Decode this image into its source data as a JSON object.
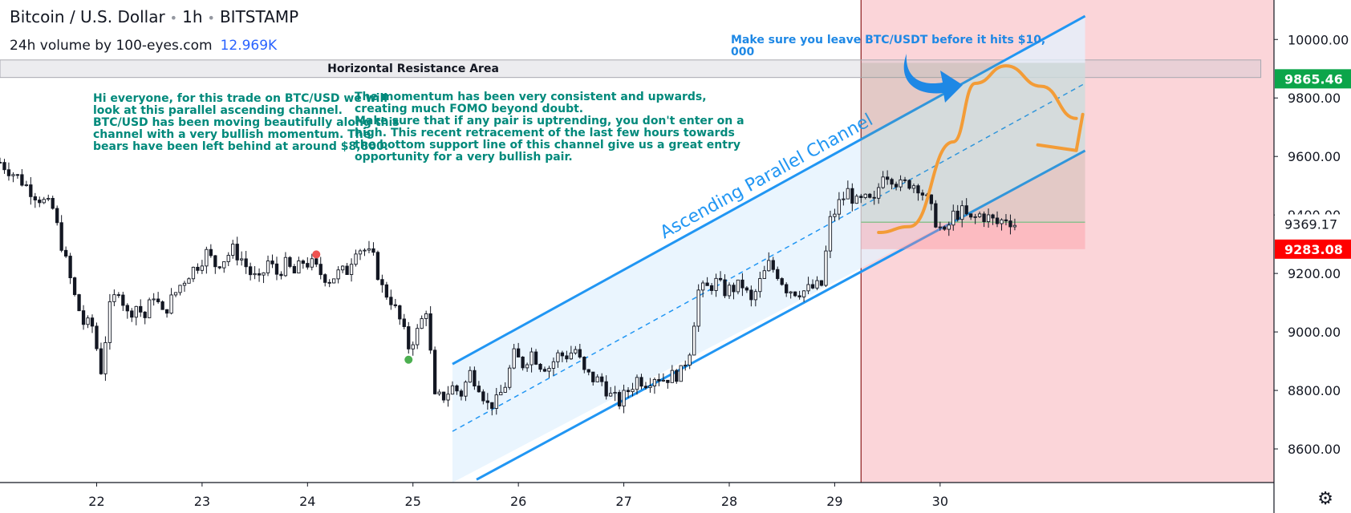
{
  "header": {
    "pair": "Bitcoin / U.S. Dollar",
    "interval": "1h",
    "exchange": "BITSTAMP",
    "volume_label": "24h volume by 100-eyes.com",
    "volume_value": "12.969K"
  },
  "colors": {
    "up_candle": "#ffffff",
    "candle_outline": "#131722",
    "channel_line": "#2196f3",
    "channel_fill": "#e3f2fd",
    "annotation_text": "#00897b",
    "warning_text": "#1e88e5",
    "stop_zone": "#fbd5d9",
    "price_tag_green": "#0ca54a",
    "price_tag_red": "#ff0000",
    "forecast_path": "#f39c37"
  },
  "annotations": {
    "resistance_label": "Horizontal Resistance Area",
    "warning_text": "Make sure you leave BTC/USDT before it hits $10,\n000",
    "text_left": "Hi everyone, for this trade on BTC/USD we will\nlook at this parallel ascending channel.\n\nBTC/USD has been moving beautifully along this\nchannel with a very bullish momentum. The\nbears have been left behind at around $8,800.",
    "text_right": "The momentum has been very consistent and upwards,\ncreating much FOMO beyond doubt.\n\nMake sure that if any pair is uptrending, you don't enter on a\nhigh. This recent retracement of the last few hours towards\nthe bottom support line of this channel give us a great entry\nopportunity for a very bullish pair.",
    "channel_label": "Ascending Parallel Channel"
  },
  "icons": {
    "settings": "gear-icon",
    "forecast_arrow": "curved-arrow-icon"
  },
  "chart_data": {
    "type": "candlestick",
    "x_tick_labels": [
      "22",
      "23",
      "24",
      "25",
      "26",
      "27",
      "28",
      "29",
      "30"
    ],
    "x_tick_hours": [
      15,
      39,
      63,
      87,
      111,
      135,
      159,
      183,
      207
    ],
    "y_tick_labels": [
      "10000.00",
      "9800.00",
      "9600.00",
      "9400.00",
      "9200.00",
      "9000.00",
      "8800.00",
      "8600.00"
    ],
    "y_tick_values": [
      10000,
      9800,
      9600,
      9400,
      9200,
      9000,
      8800,
      8600
    ],
    "ylim": [
      8485,
      10135
    ],
    "xlim_hours": [
      -7,
      283
    ],
    "price_tags": [
      {
        "label": "9865.46",
        "value": 9865.46,
        "style": "green"
      },
      {
        "label": "9369.17",
        "value": 9369.17,
        "style": "plain"
      },
      {
        "label": "9283.08",
        "value": 9283.08,
        "style": "red"
      }
    ],
    "resistance_zone": [
      9870,
      9930
    ],
    "channel": {
      "start_hour": 96,
      "end_hour": 240,
      "upper": [
        8890,
        10080
      ],
      "middle": [
        8660,
        9850
      ],
      "lower": [
        8430,
        9620
      ]
    },
    "trade_box": {
      "start_hour": 189,
      "end_hour": 240,
      "top": 9920,
      "entry": 9375,
      "bottom": 9283
    },
    "stop_zone_start_hour": 189,
    "event_markers": [
      {
        "hour": 65,
        "value": 9265,
        "kind": "sell-dot"
      },
      {
        "hour": 86,
        "value": 8905,
        "kind": "buy-dot"
      }
    ],
    "ohlc_anchors": [
      [
        -7,
        9580
      ],
      [
        -3,
        9530
      ],
      [
        1,
        9470
      ],
      [
        5,
        9420
      ],
      [
        8,
        9240
      ],
      [
        10,
        9120
      ],
      [
        12,
        9030
      ],
      [
        14,
        9020
      ],
      [
        16,
        8870
      ],
      [
        18,
        9080
      ],
      [
        20,
        9150
      ],
      [
        22,
        9060
      ],
      [
        24,
        9090
      ],
      [
        26,
        9050
      ],
      [
        28,
        9130
      ],
      [
        30,
        9060
      ],
      [
        32,
        9110
      ],
      [
        34,
        9160
      ],
      [
        36,
        9200
      ],
      [
        38,
        9230
      ],
      [
        40,
        9270
      ],
      [
        42,
        9230
      ],
      [
        44,
        9250
      ],
      [
        46,
        9280
      ],
      [
        48,
        9250
      ],
      [
        50,
        9200
      ],
      [
        52,
        9170
      ],
      [
        54,
        9240
      ],
      [
        56,
        9200
      ],
      [
        58,
        9230
      ],
      [
        60,
        9200
      ],
      [
        62,
        9240
      ],
      [
        64,
        9230
      ],
      [
        66,
        9200
      ],
      [
        68,
        9180
      ],
      [
        70,
        9200
      ],
      [
        72,
        9210
      ],
      [
        74,
        9290
      ],
      [
        76,
        9280
      ],
      [
        78,
        9250
      ],
      [
        80,
        9150
      ],
      [
        82,
        9110
      ],
      [
        84,
        9040
      ],
      [
        86,
        8950
      ],
      [
        88,
        9000
      ],
      [
        90,
        9080
      ],
      [
        92,
        8770
      ],
      [
        94,
        8780
      ],
      [
        96,
        8810
      ],
      [
        98,
        8790
      ],
      [
        100,
        8860
      ],
      [
        102,
        8820
      ],
      [
        104,
        8750
      ],
      [
        106,
        8760
      ],
      [
        108,
        8820
      ],
      [
        110,
        8920
      ],
      [
        112,
        8890
      ],
      [
        114,
        8930
      ],
      [
        116,
        8890
      ],
      [
        118,
        8880
      ],
      [
        120,
        8920
      ],
      [
        122,
        8920
      ],
      [
        124,
        8940
      ],
      [
        126,
        8860
      ],
      [
        128,
        8840
      ],
      [
        130,
        8830
      ],
      [
        132,
        8780
      ],
      [
        134,
        8760
      ],
      [
        136,
        8800
      ],
      [
        138,
        8840
      ],
      [
        140,
        8830
      ],
      [
        142,
        8850
      ],
      [
        144,
        8840
      ],
      [
        146,
        8850
      ],
      [
        148,
        8860
      ],
      [
        150,
        8940
      ],
      [
        152,
        9140
      ],
      [
        154,
        9150
      ],
      [
        156,
        9170
      ],
      [
        158,
        9140
      ],
      [
        160,
        9150
      ],
      [
        162,
        9160
      ],
      [
        164,
        9100
      ],
      [
        166,
        9170
      ],
      [
        168,
        9230
      ],
      [
        170,
        9200
      ],
      [
        172,
        9150
      ],
      [
        174,
        9140
      ],
      [
        176,
        9140
      ],
      [
        178,
        9150
      ],
      [
        180,
        9160
      ],
      [
        182,
        9380
      ],
      [
        184,
        9440
      ],
      [
        186,
        9480
      ],
      [
        188,
        9440
      ],
      [
        190,
        9450
      ],
      [
        192,
        9440
      ],
      [
        194,
        9550
      ],
      [
        196,
        9530
      ],
      [
        198,
        9500
      ],
      [
        200,
        9510
      ],
      [
        202,
        9500
      ],
      [
        204,
        9450
      ],
      [
        206,
        9380
      ],
      [
        208,
        9330
      ],
      [
        210,
        9400
      ],
      [
        212,
        9410
      ],
      [
        214,
        9380
      ],
      [
        216,
        9400
      ],
      [
        218,
        9390
      ],
      [
        220,
        9370
      ],
      [
        222,
        9390
      ],
      [
        224,
        9369
      ]
    ],
    "forecast_path": [
      [
        193,
        9340
      ],
      [
        200,
        9360
      ],
      [
        210,
        9650
      ],
      [
        215,
        9850
      ],
      [
        222,
        9910
      ],
      [
        230,
        9840
      ],
      [
        238,
        9730
      ]
    ]
  }
}
